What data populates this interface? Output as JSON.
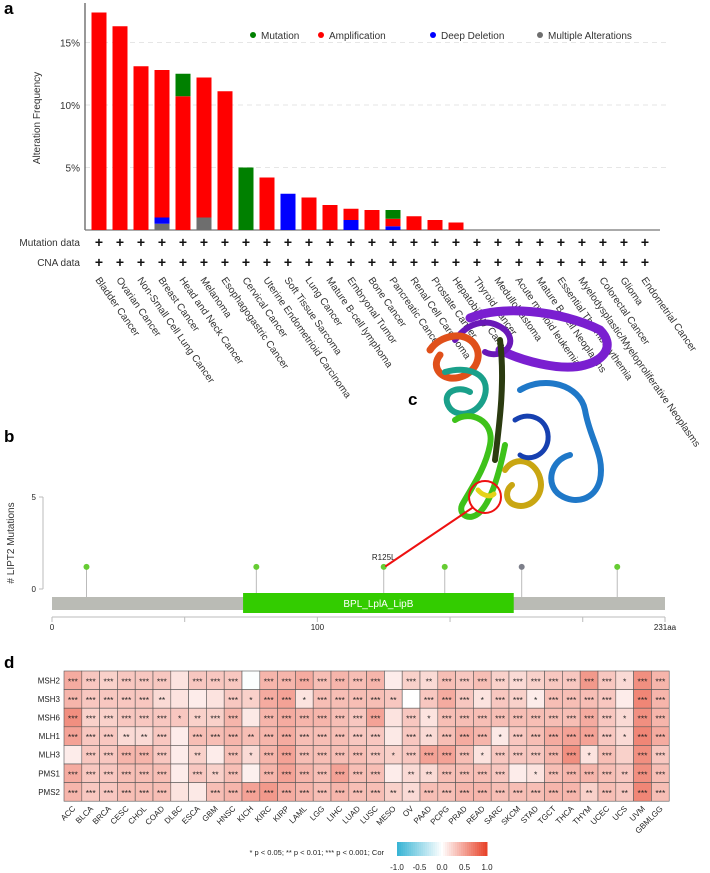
{
  "panels": {
    "a": "a",
    "b": "b",
    "c": "c",
    "d": "d"
  },
  "colors": {
    "mutation": "#008000",
    "amplification": "#ff0000",
    "deep_deletion": "#0000ff",
    "multiple_alterations": "#6e6e6e",
    "domain": "#33cc00",
    "protein_backbone": "#babbb5",
    "lollipop_missense": "#66cc33",
    "lollipop_other": "#7d7f8a",
    "heat_high": "#e8452c",
    "heat_low": "#3ab5d5"
  },
  "chart_data": [
    {
      "type": "bar",
      "stacked": true,
      "ylabel": "Alteration Frequency",
      "ylim": [
        0,
        18
      ],
      "yticks": [
        "5%",
        "10%",
        "15%"
      ],
      "ytick_values": [
        5,
        10,
        15
      ],
      "grid": "dashed horizontal",
      "legend_placement": "top-right",
      "legend": [
        "Mutation",
        "Amplification",
        "Deep Deletion",
        "Multiple Alterations"
      ],
      "row_labels": [
        "Mutation data",
        "CNA data"
      ],
      "row_marker": "+",
      "categories": [
        "Bladder Cancer",
        "Ovarian Cancer",
        "Non-Small Cell Lung Cancer",
        "Breast Cancer",
        "Head and Neck Cancer",
        "Melanoma",
        "Esophagogastric Cancer",
        "Cervical Cancer",
        "Uterine Endometrioid Carcinoma",
        "Soft Tissue Sarcoma",
        "Lung Cancer",
        "Mature B-cell lymphoma",
        "Embryonal Tumor",
        "Bone Cancer",
        "Pancreatic Cancer",
        "Renal Cell Carcinoma",
        "Prostate Cancer",
        "Hepatobiliary Cancer",
        "Thyroid Cancer",
        "Medulloblastoma",
        "Acute myeloid leukemia",
        "Mature B-Cell Neoplasms",
        "Essential Thrombocythemia",
        "Myelodysplastic/Myeloproliferative Neoplasms",
        "Colorectal Cancer",
        "Glioma",
        "Endometrial Cancer"
      ],
      "series": [
        {
          "name": "Multiple Alterations",
          "values": [
            0,
            0,
            0,
            0.5,
            0,
            1.0,
            0,
            0,
            0,
            0,
            0,
            0,
            0,
            0,
            0,
            0,
            0,
            0,
            0,
            0,
            0,
            0,
            0,
            0,
            0,
            0,
            0
          ]
        },
        {
          "name": "Deep Deletion",
          "values": [
            0,
            0,
            0,
            0.5,
            0,
            0,
            0,
            0,
            0,
            2.9,
            0,
            0,
            0.8,
            0,
            0.3,
            0,
            0,
            0,
            0,
            0,
            0,
            0,
            0,
            0,
            0,
            0,
            0
          ]
        },
        {
          "name": "Amplification",
          "values": [
            17.4,
            16.3,
            13.1,
            11.8,
            10.7,
            11.2,
            11.1,
            0,
            4.2,
            0,
            2.6,
            2.0,
            0.9,
            1.6,
            0.6,
            1.1,
            0.8,
            0.6,
            0,
            0,
            0,
            0,
            0,
            0,
            0,
            0,
            0
          ]
        },
        {
          "name": "Mutation",
          "values": [
            0,
            0,
            0,
            0,
            1.8,
            0,
            0,
            5.0,
            0,
            0,
            0,
            0,
            0,
            0,
            0.7,
            0,
            0,
            0,
            0,
            0,
            0,
            0,
            0,
            0,
            0,
            0,
            0
          ]
        }
      ]
    },
    {
      "type": "lollipop",
      "ylabel": "# LIPT2 Mutations",
      "ylim": [
        0,
        5
      ],
      "yticks": [
        "0",
        "5"
      ],
      "xlim": [
        0,
        231
      ],
      "xticks": [
        "0",
        "100",
        "231aa"
      ],
      "xtick_values": [
        0,
        100,
        231
      ],
      "domain": {
        "name": "BPL_LplA_LipB",
        "start": 72,
        "end": 174
      },
      "mutations": [
        {
          "position": 13,
          "count": 1,
          "type": "missense"
        },
        {
          "position": 77,
          "count": 1,
          "type": "missense"
        },
        {
          "position": 125,
          "count": 1,
          "type": "missense",
          "label": "R125L"
        },
        {
          "position": 148,
          "count": 1,
          "type": "missense"
        },
        {
          "position": 177,
          "count": 1,
          "type": "other"
        },
        {
          "position": 213,
          "count": 1,
          "type": "missense"
        }
      ]
    },
    {
      "type": "heatmap",
      "rows": [
        "MSH2",
        "MSH3",
        "MSH6",
        "MLH1",
        "MLH3",
        "PMS1",
        "PMS2"
      ],
      "columns": [
        "ACC",
        "BLCA",
        "BRCA",
        "CESC",
        "CHOL",
        "COAD",
        "DLBC",
        "ESCA",
        "GBM",
        "HNSC",
        "KICH",
        "KIRC",
        "KIRP",
        "LAML",
        "LGG",
        "LIHC",
        "LUAD",
        "LUSC",
        "MESO",
        "OV",
        "PAAD",
        "PCPG",
        "PRAD",
        "READ",
        "SARC",
        "SKCM",
        "STAD",
        "TGCT",
        "THCA",
        "THYM",
        "UCEC",
        "UCS",
        "UVM",
        "GBMLGG"
      ],
      "values": [
        [
          0.45,
          0.3,
          0.25,
          0.3,
          0.3,
          0.3,
          0.15,
          0.3,
          0.3,
          0.3,
          -0.02,
          0.4,
          0.4,
          0.45,
          0.35,
          0.4,
          0.35,
          0.4,
          0.1,
          0.25,
          0.2,
          0.35,
          0.3,
          0.35,
          0.25,
          0.2,
          0.25,
          0.3,
          0.3,
          0.55,
          0.3,
          0.2,
          0.6,
          0.4
        ],
        [
          0.4,
          0.3,
          0.3,
          0.3,
          0.3,
          0.2,
          0.15,
          0.1,
          0.15,
          0.3,
          0.25,
          0.45,
          0.5,
          0.15,
          0.35,
          0.35,
          0.35,
          0.35,
          0.3,
          0.0,
          0.3,
          0.45,
          0.3,
          0.15,
          0.3,
          0.25,
          0.1,
          0.35,
          0.35,
          0.35,
          0.3,
          0.1,
          0.65,
          0.4
        ],
        [
          0.6,
          0.25,
          0.25,
          0.3,
          0.3,
          0.3,
          0.3,
          0.25,
          0.25,
          0.4,
          0.12,
          0.4,
          0.45,
          0.4,
          0.4,
          0.35,
          0.3,
          0.5,
          0.15,
          0.3,
          0.15,
          0.35,
          0.35,
          0.35,
          0.35,
          0.35,
          0.35,
          0.35,
          0.35,
          0.45,
          0.3,
          0.2,
          0.6,
          0.4
        ],
        [
          0.5,
          0.3,
          0.3,
          0.2,
          0.2,
          0.3,
          0.1,
          0.35,
          0.35,
          0.4,
          0.35,
          0.4,
          0.45,
          0.35,
          0.35,
          0.35,
          0.3,
          0.3,
          0.12,
          0.3,
          0.2,
          0.35,
          0.45,
          0.4,
          0.12,
          0.3,
          0.35,
          0.45,
          0.5,
          0.5,
          0.3,
          0.2,
          0.65,
          0.45
        ],
        [
          0.1,
          0.3,
          0.3,
          0.4,
          0.4,
          0.3,
          0.1,
          0.25,
          0.1,
          0.35,
          0.2,
          0.4,
          0.5,
          0.35,
          0.35,
          0.35,
          0.35,
          0.3,
          0.25,
          0.3,
          0.5,
          0.5,
          0.35,
          0.15,
          0.3,
          0.3,
          0.3,
          0.4,
          0.6,
          0.15,
          0.35,
          0.25,
          0.6,
          0.3
        ],
        [
          0.45,
          0.3,
          0.3,
          0.35,
          0.35,
          0.35,
          0.1,
          0.3,
          0.25,
          0.35,
          0.08,
          0.4,
          0.5,
          0.4,
          0.35,
          0.5,
          0.35,
          0.35,
          0.1,
          0.2,
          0.2,
          0.35,
          0.35,
          0.35,
          0.3,
          0.1,
          0.15,
          0.35,
          0.4,
          0.4,
          0.35,
          0.3,
          0.6,
          0.35
        ],
        [
          0.4,
          0.3,
          0.3,
          0.35,
          0.35,
          0.35,
          0.15,
          0.12,
          0.35,
          0.4,
          0.5,
          0.55,
          0.45,
          0.4,
          0.35,
          0.4,
          0.35,
          0.35,
          0.25,
          0.2,
          0.35,
          0.35,
          0.4,
          0.4,
          0.35,
          0.35,
          0.35,
          0.4,
          0.4,
          0.25,
          0.35,
          0.3,
          0.65,
          0.35
        ]
      ],
      "significance": [
        [
          "***",
          "***",
          "***",
          "***",
          "***",
          "***",
          "",
          "***",
          "***",
          "***",
          "",
          "***",
          "***",
          "***",
          "***",
          "***",
          "***",
          "***",
          "",
          "***",
          "**",
          "***",
          "***",
          "***",
          "***",
          "***",
          "***",
          "***",
          "***",
          "***",
          "***",
          "*",
          "***",
          "***"
        ],
        [
          "***",
          "***",
          "***",
          "***",
          "***",
          "**",
          "",
          "",
          "",
          "***",
          "*",
          "***",
          "***",
          "*",
          "***",
          "***",
          "***",
          "***",
          "**",
          "",
          "***",
          "***",
          "***",
          "*",
          "***",
          "***",
          "*",
          "***",
          "***",
          "***",
          "***",
          "",
          "***",
          "***"
        ],
        [
          "***",
          "***",
          "***",
          "***",
          "***",
          "***",
          "*",
          "**",
          "***",
          "***",
          "",
          "***",
          "***",
          "***",
          "***",
          "***",
          "***",
          "***",
          "",
          "***",
          "*",
          "***",
          "***",
          "***",
          "***",
          "***",
          "***",
          "***",
          "***",
          "***",
          "***",
          "*",
          "***",
          "***"
        ],
        [
          "***",
          "***",
          "***",
          "**",
          "**",
          "***",
          "",
          "***",
          "***",
          "***",
          "**",
          "***",
          "***",
          "***",
          "***",
          "***",
          "***",
          "***",
          "",
          "***",
          "**",
          "***",
          "***",
          "***",
          "*",
          "***",
          "***",
          "***",
          "***",
          "***",
          "***",
          "*",
          "***",
          "***"
        ],
        [
          "",
          "***",
          "***",
          "***",
          "***",
          "***",
          "",
          "**",
          "",
          "***",
          "*",
          "***",
          "***",
          "***",
          "***",
          "***",
          "***",
          "***",
          "*",
          "***",
          "***",
          "***",
          "***",
          "*",
          "***",
          "***",
          "***",
          "***",
          "***",
          "*",
          "***",
          "",
          "***",
          "***"
        ],
        [
          "***",
          "***",
          "***",
          "***",
          "***",
          "***",
          "",
          "***",
          "**",
          "***",
          "",
          "***",
          "***",
          "***",
          "***",
          "***",
          "***",
          "***",
          "",
          "**",
          "**",
          "***",
          "***",
          "***",
          "***",
          "",
          "*",
          "***",
          "***",
          "***",
          "***",
          "**",
          "***",
          "***"
        ],
        [
          "***",
          "***",
          "***",
          "***",
          "***",
          "***",
          "",
          "",
          "***",
          "***",
          "***",
          "***",
          "***",
          "***",
          "***",
          "***",
          "***",
          "***",
          "**",
          "**",
          "***",
          "***",
          "***",
          "***",
          "***",
          "***",
          "***",
          "***",
          "***",
          "**",
          "***",
          "**",
          "***",
          "***"
        ]
      ],
      "footnote": "* p < 0.05; ** p < 0.01; *** p < 0.001; Cor",
      "colorbar_range": [
        -1,
        1
      ],
      "colorbar_ticks": [
        "-1.0",
        "-0.5",
        "0.0",
        "0.5",
        "1.0"
      ]
    }
  ]
}
